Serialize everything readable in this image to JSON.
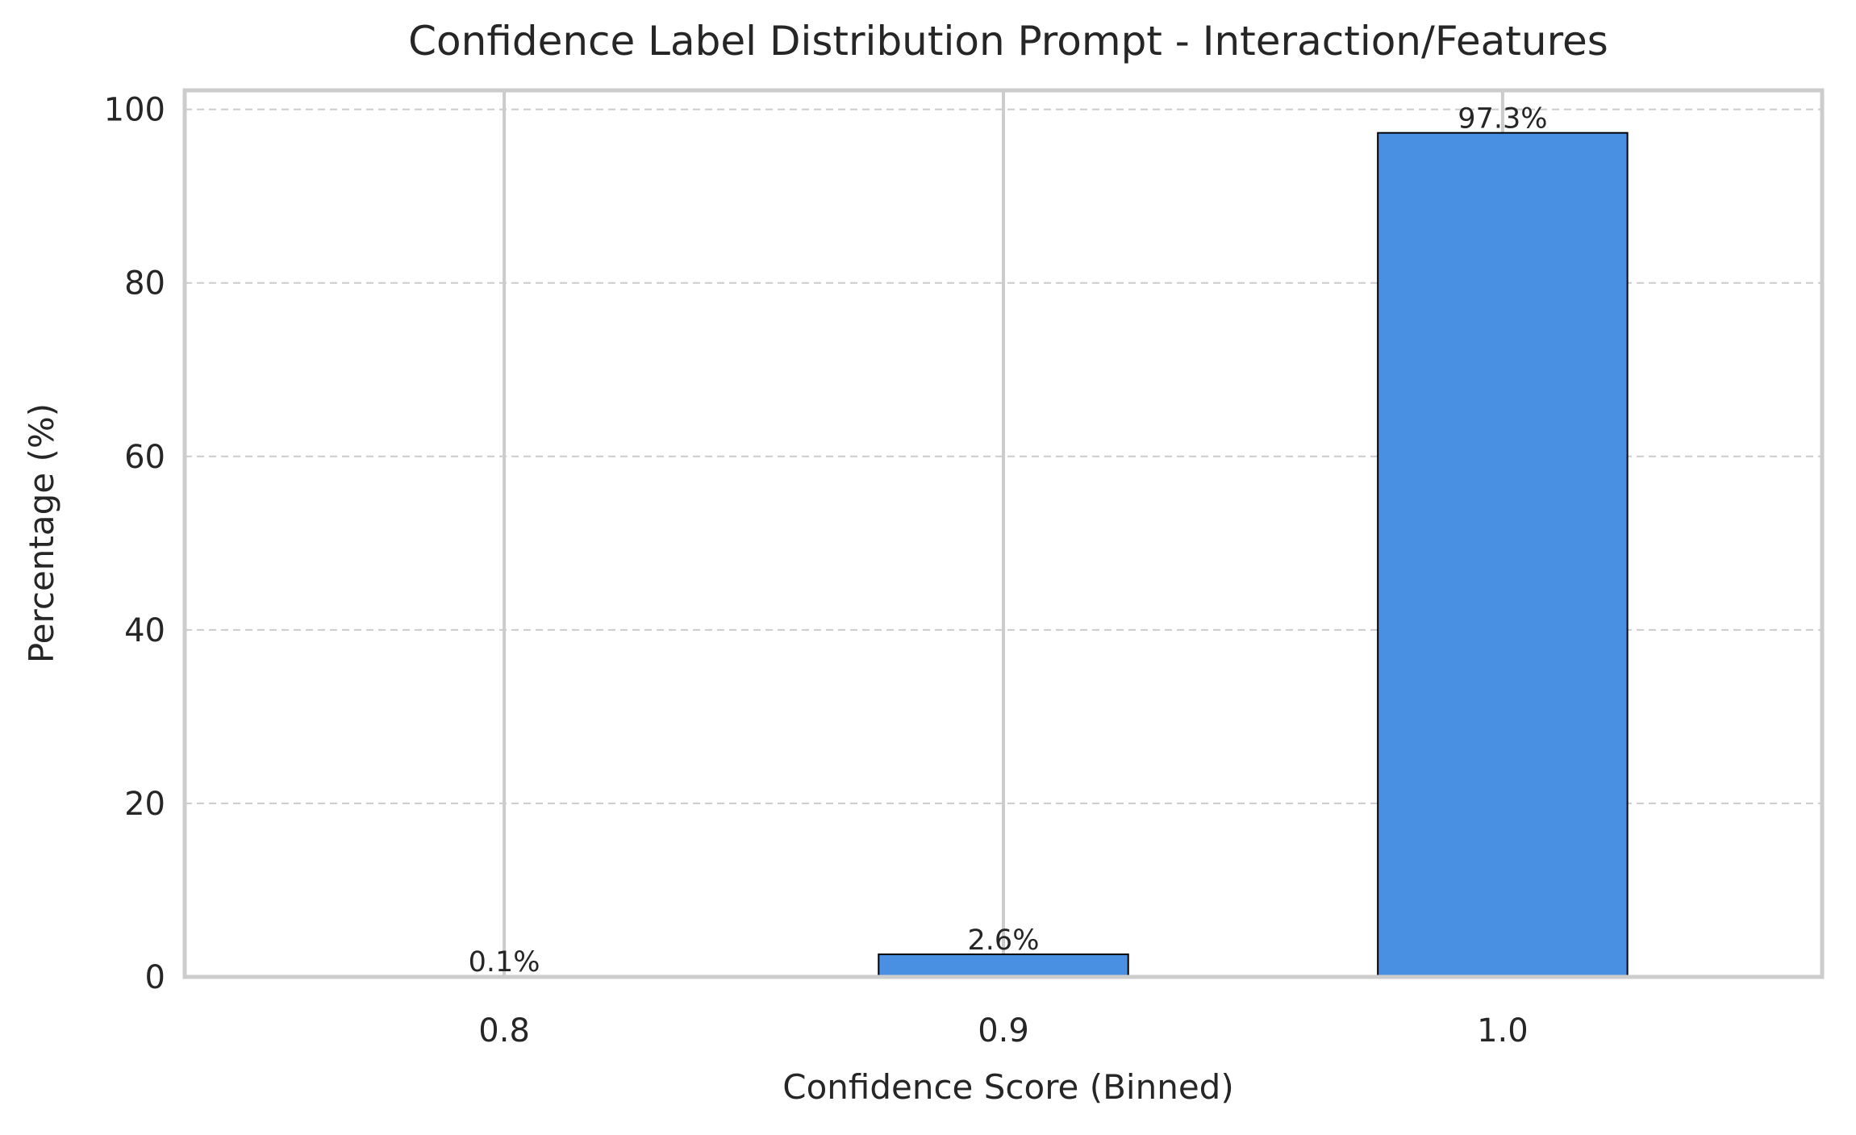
{
  "chart_data": {
    "type": "bar",
    "title": "Confidence Label Distribution Prompt - Interaction/Features",
    "xlabel": "Confidence Score (Binned)",
    "ylabel": "Percentage (%)",
    "categories": [
      "0.8",
      "0.9",
      "1.0"
    ],
    "values": [
      0.1,
      2.6,
      97.3
    ],
    "value_labels": [
      "0.1%",
      "2.6%",
      "97.3%"
    ],
    "ylim": [
      0,
      102.2
    ],
    "yticks": [
      0,
      20,
      40,
      60,
      80,
      100
    ],
    "ytick_labels": [
      "0",
      "20",
      "40",
      "60",
      "80",
      "100"
    ],
    "grid": {
      "y": "dashed",
      "x": "solid"
    },
    "colors": {
      "bar": "#4a90e2",
      "bar_edge": "#000000",
      "grid": "#cccccc",
      "frame": "#cccccc",
      "text": "#262626"
    }
  }
}
